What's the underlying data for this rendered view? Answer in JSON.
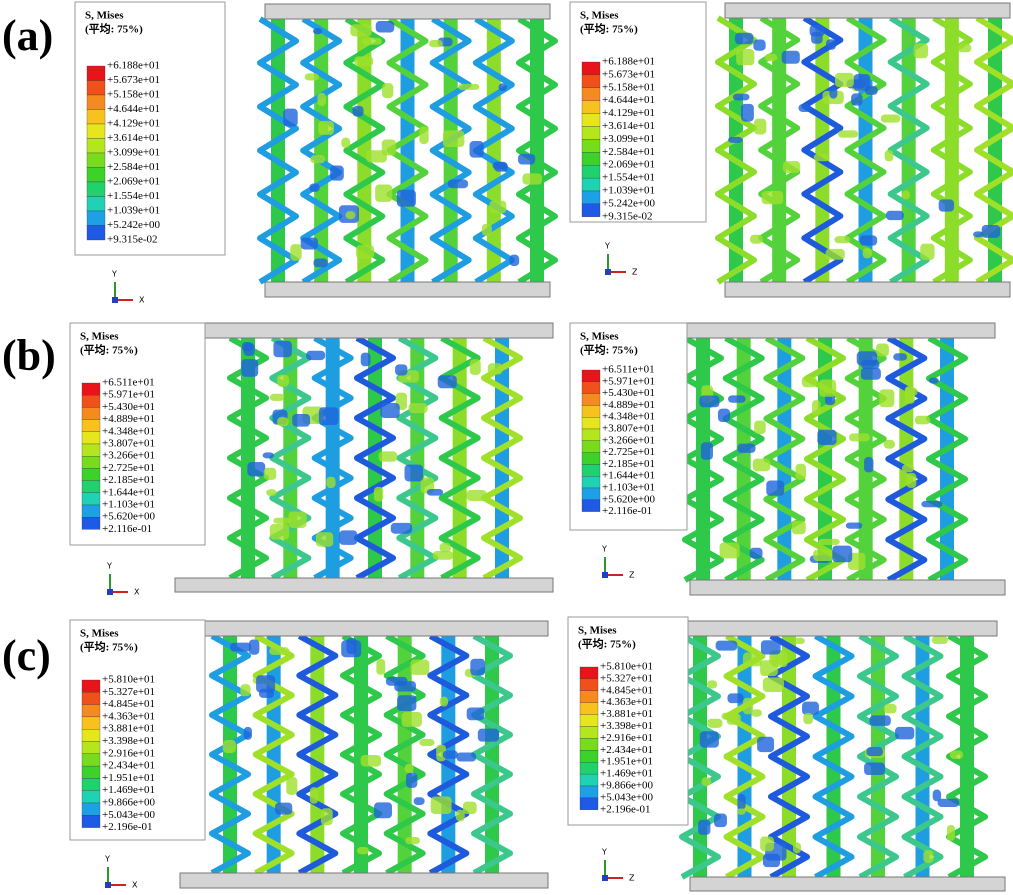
{
  "figure": {
    "rows": [
      {
        "label": "(a)",
        "panels": [
          {
            "legend": {
              "title": "S, Mises",
              "subtitle": "(平均: 75%)",
              "values": [
                "+6.188e+01",
                "+5.673e+01",
                "+5.158e+01",
                "+4.644e+01",
                "+4.129e+01",
                "+3.614e+01",
                "+3.099e+01",
                "+2.584e+01",
                "+2.069e+01",
                "+1.554e+01",
                "+1.039e+01",
                "+5.242e+00",
                "+9.315e-02"
              ]
            },
            "axis_up": "Y",
            "axis_side": "X"
          },
          {
            "legend": {
              "title": "S, Mises",
              "subtitle": "(平均: 75%)",
              "values": [
                "+6.188e+01",
                "+5.673e+01",
                "+5.158e+01",
                "+4.644e+01",
                "+4.129e+01",
                "+3.614e+01",
                "+3.099e+01",
                "+2.584e+01",
                "+2.069e+01",
                "+1.554e+01",
                "+1.039e+01",
                "+5.242e+00",
                "+9.315e-02"
              ]
            },
            "axis_up": "Y",
            "axis_side": "Z"
          }
        ]
      },
      {
        "label": "(b)",
        "panels": [
          {
            "legend": {
              "title": "S, Mises",
              "subtitle": "(平均: 75%)",
              "values": [
                "+6.511e+01",
                "+5.971e+01",
                "+5.430e+01",
                "+4.889e+01",
                "+4.348e+01",
                "+3.807e+01",
                "+3.266e+01",
                "+2.725e+01",
                "+2.185e+01",
                "+1.644e+01",
                "+1.103e+01",
                "+5.620e+00",
                "+2.116e-01"
              ]
            },
            "axis_up": "Y",
            "axis_side": "X"
          },
          {
            "legend": {
              "title": "S, Mises",
              "subtitle": "(平均: 75%)",
              "values": [
                "+6.511e+01",
                "+5.971e+01",
                "+5.430e+01",
                "+4.889e+01",
                "+4.348e+01",
                "+3.807e+01",
                "+3.266e+01",
                "+2.725e+01",
                "+2.185e+01",
                "+1.644e+01",
                "+1.103e+01",
                "+5.620e+00",
                "+2.116e-01"
              ]
            },
            "axis_up": "Y",
            "axis_side": "Z"
          }
        ]
      },
      {
        "label": "(c)",
        "panels": [
          {
            "legend": {
              "title": "S, Mises",
              "subtitle": "(平均: 75%)",
              "values": [
                "+5.810e+01",
                "+5.327e+01",
                "+4.845e+01",
                "+4.363e+01",
                "+3.881e+01",
                "+3.398e+01",
                "+2.916e+01",
                "+2.434e+01",
                "+1.951e+01",
                "+1.469e+01",
                "+9.866e+00",
                "+5.043e+00",
                "+2.196e-01"
              ]
            },
            "axis_up": "Y",
            "axis_side": "X"
          },
          {
            "legend": {
              "title": "S, Mises",
              "subtitle": "(平均: 75%)",
              "values": [
                "+5.810e+01",
                "+5.327e+01",
                "+4.845e+01",
                "+4.363e+01",
                "+3.881e+01",
                "+3.398e+01",
                "+2.916e+01",
                "+2.434e+01",
                "+1.951e+01",
                "+1.469e+01",
                "+9.866e+00",
                "+5.043e+00",
                "+2.196e-01"
              ]
            },
            "axis_up": "Y",
            "axis_side": "Z"
          }
        ]
      }
    ]
  }
}
